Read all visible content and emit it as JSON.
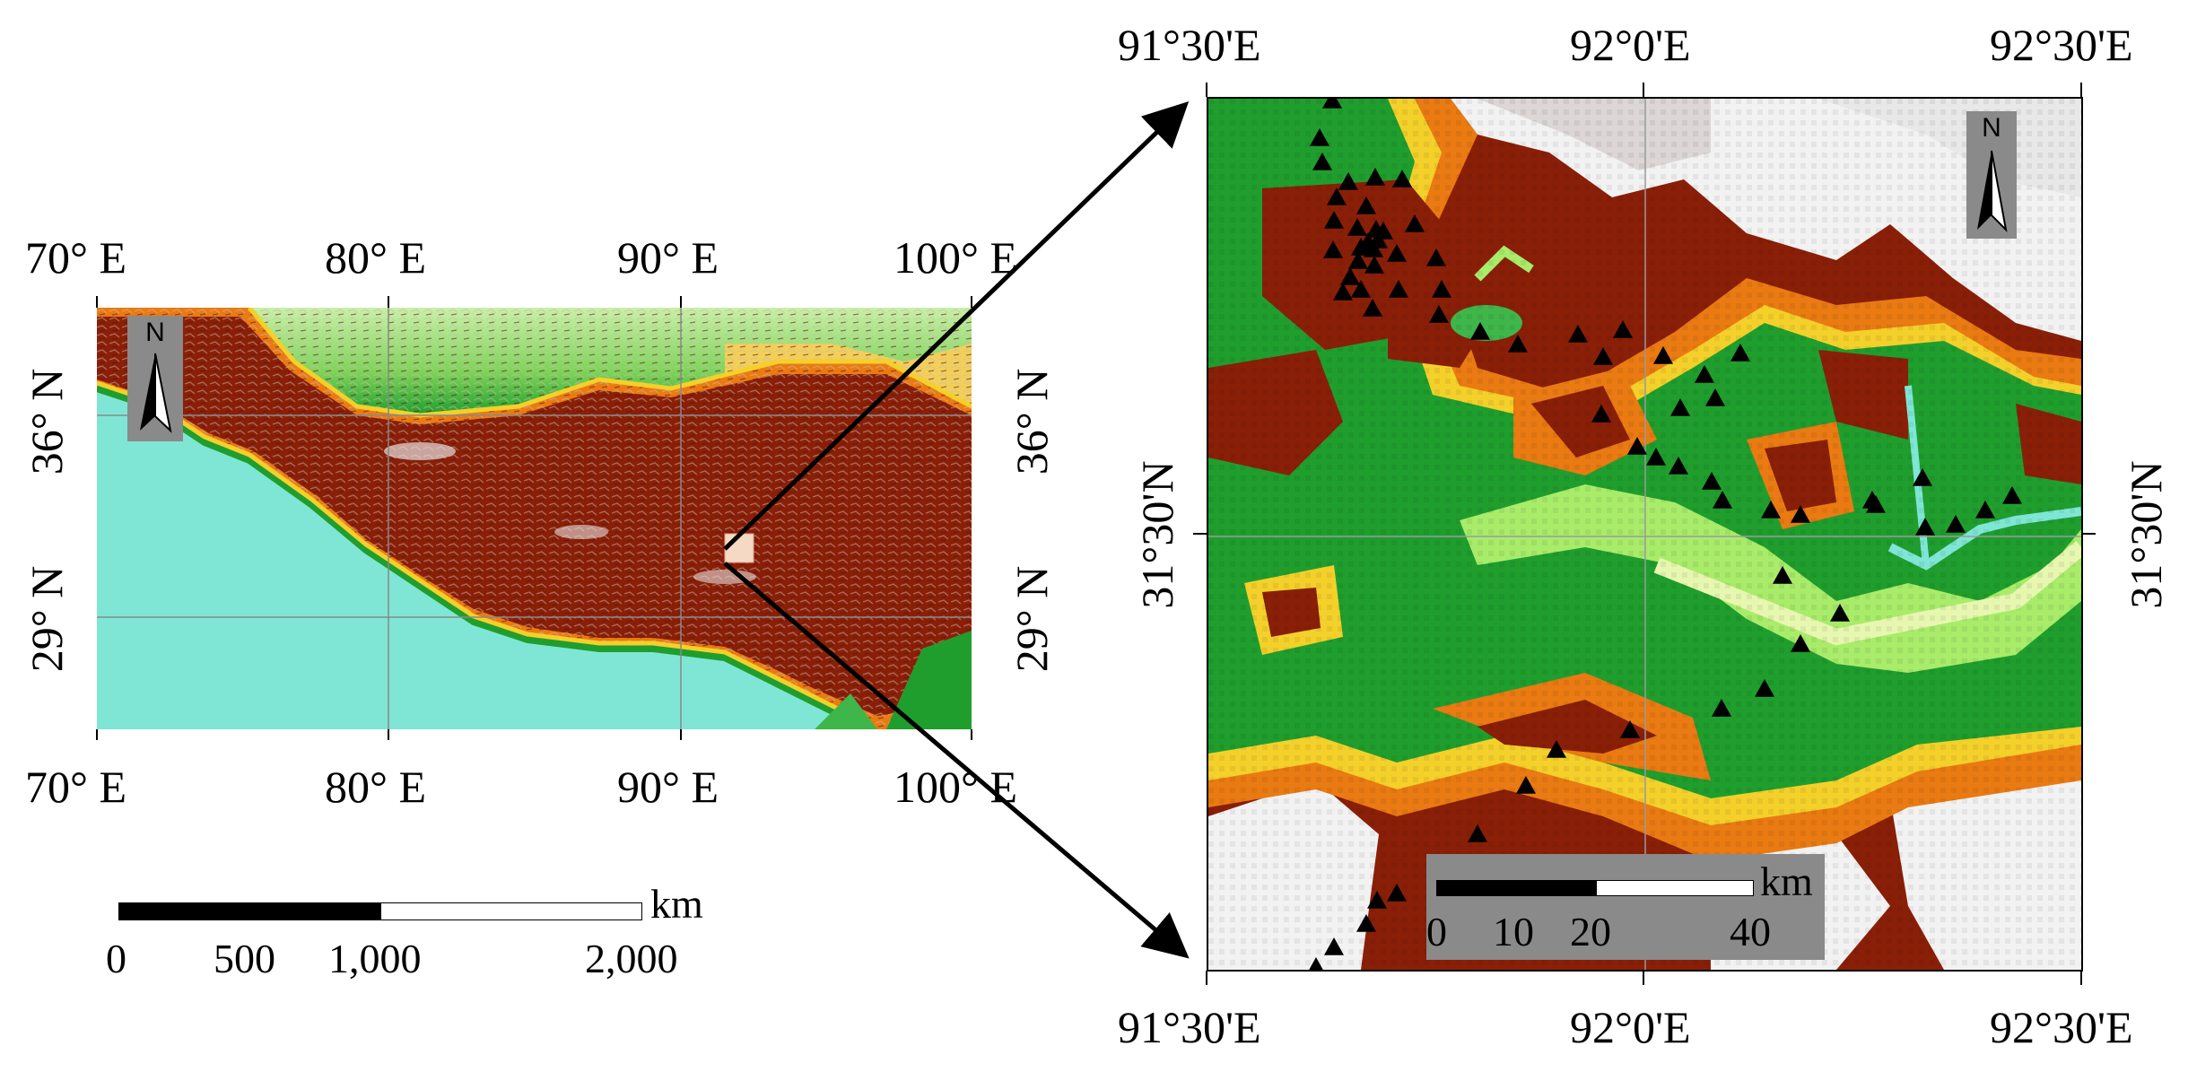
{
  "overview_map": {
    "top_lon_labels": [
      "70° E",
      "80° E",
      "90° E",
      "100° E"
    ],
    "bottom_lon_labels": [
      "70° E",
      "80° E",
      "90° E",
      "100° E"
    ],
    "left_lat_labels": [
      "36° N",
      "29° N"
    ],
    "right_lat_labels": [
      "36° N",
      "29° N"
    ],
    "north_label": "N",
    "scale_bar": {
      "unit": "km",
      "ticks": [
        "0",
        "500",
        "1,000",
        "2,000"
      ]
    }
  },
  "detail_map": {
    "top_lon_labels": [
      "91°30'E",
      "92°0'E",
      "92°30'E"
    ],
    "bottom_lon_labels": [
      "91°30'E",
      "92°0'E",
      "92°30'E"
    ],
    "left_lat_label": "31°30'N",
    "right_lat_label": "31°30'N",
    "north_label": "N",
    "scale_bar": {
      "unit": "km",
      "ticks": [
        "0",
        "10",
        "20",
        "40"
      ]
    },
    "station_count": 70
  },
  "colors": {
    "water_cyan": "#7fe6d6",
    "low_green": "#1f9e2e",
    "mid_yellow": "#f4d02a",
    "orange": "#ea7a12",
    "high_brown": "#8a1f08",
    "snow_white": "#f2f2f2",
    "study_area_box": "#f5d9c4",
    "station_marker": "#000000"
  },
  "icons": [
    "north-arrow-icon",
    "station-triangle-icon",
    "zoom-arrow-icon"
  ]
}
